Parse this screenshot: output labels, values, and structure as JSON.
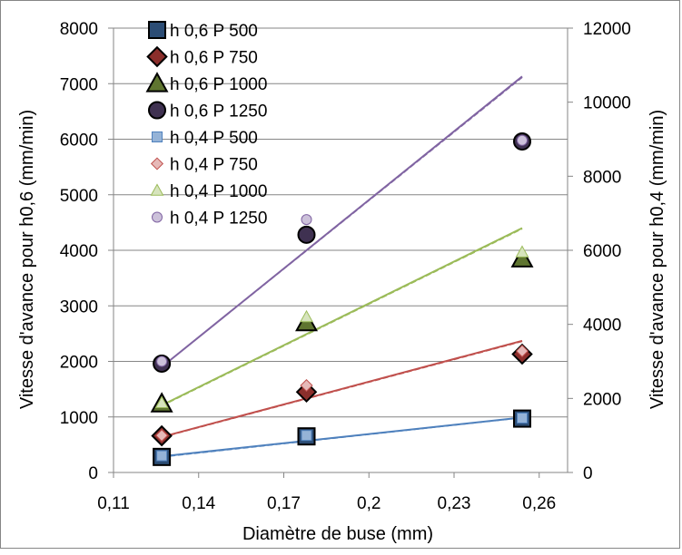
{
  "chart_data": {
    "type": "scatter",
    "title": "",
    "xlabel": "Diamètre de buse (mm)",
    "ylabel": "Vitesse d'avance pour h0,6 (mm/min)",
    "y2label": "Vitesse d'avance pour h0,4  (mm/min)",
    "xlim": [
      0.11,
      0.27
    ],
    "ylim": [
      0,
      8000
    ],
    "y2lim": [
      0,
      12000
    ],
    "x_ticks": [
      "0,11",
      "0,14",
      "0,17",
      "0,2",
      "0,23",
      "0,26"
    ],
    "x_tick_values": [
      0.11,
      0.14,
      0.17,
      0.2,
      0.23,
      0.26
    ],
    "y_ticks": [
      "0",
      "1000",
      "2000",
      "3000",
      "4000",
      "5000",
      "6000",
      "7000",
      "8000"
    ],
    "y_tick_values": [
      0,
      1000,
      2000,
      3000,
      4000,
      5000,
      6000,
      7000,
      8000
    ],
    "y2_ticks": [
      "0",
      "2000",
      "4000",
      "6000",
      "8000",
      "10000",
      "12000"
    ],
    "y2_tick_values": [
      0,
      2000,
      4000,
      6000,
      8000,
      10000,
      12000
    ],
    "grid": "horizontal",
    "legend_position": "top-left",
    "series": [
      {
        "name": "h 0,6 P 500",
        "axis": "left",
        "marker": "square",
        "size": "large",
        "fill": "#2c4d75",
        "stroke": "#000000",
        "x": [
          0.127,
          0.178,
          0.254
        ],
        "y": [
          280,
          650,
          970
        ]
      },
      {
        "name": "h 0,6 P 750",
        "axis": "left",
        "marker": "diamond",
        "size": "large",
        "fill": "#8b2e2b",
        "stroke": "#000000",
        "x": [
          0.127,
          0.178,
          0.254
        ],
        "y": [
          660,
          1450,
          2130
        ]
      },
      {
        "name": "h 0,6 P 1000",
        "axis": "left",
        "marker": "triangle",
        "size": "large",
        "fill": "#5f7530",
        "stroke": "#000000",
        "x": [
          0.127,
          0.178,
          0.254
        ],
        "y": [
          1240,
          2700,
          3850
        ]
      },
      {
        "name": "h 0,6 P 1250",
        "axis": "left",
        "marker": "circle",
        "size": "large",
        "fill": "#3f3151",
        "stroke": "#000000",
        "x": [
          0.127,
          0.178,
          0.254
        ],
        "y": [
          1960,
          4280,
          5960
        ]
      },
      {
        "name": "h 0,4 P 500",
        "axis": "right",
        "marker": "square",
        "size": "small",
        "fill": "#95b3d7",
        "stroke": "#4f81bd",
        "x": [
          0.127,
          0.178,
          0.254
        ],
        "y": [
          450,
          1000,
          1470
        ]
      },
      {
        "name": "h 0,4 P 750",
        "axis": "right",
        "marker": "diamond",
        "size": "small",
        "fill": "#e6b9b8",
        "stroke": "#c0504d",
        "x": [
          0.127,
          0.178,
          0.254
        ],
        "y": [
          1000,
          2350,
          3280
        ]
      },
      {
        "name": "h 0,4 P 1000",
        "axis": "right",
        "marker": "triangle",
        "size": "small",
        "fill": "#d7e4bd",
        "stroke": "#9bbb59",
        "x": [
          0.127,
          0.178,
          0.254
        ],
        "y": [
          1880,
          4200,
          5950
        ]
      },
      {
        "name": "h 0,4 P 1250",
        "axis": "right",
        "marker": "circle",
        "size": "small",
        "fill": "#ccc1da",
        "stroke": "#8064a2",
        "x": [
          0.127,
          0.178,
          0.254
        ],
        "y": [
          3000,
          6830,
          8970
        ]
      }
    ],
    "trendlines": [
      {
        "series": "h 0,6 P 500",
        "axis": "left",
        "color": "#4f81bd",
        "x": [
          0.127,
          0.254
        ],
        "y": [
          290,
          990
        ]
      },
      {
        "series": "h 0,6 P 750",
        "axis": "left",
        "color": "#c0504d",
        "x": [
          0.127,
          0.254
        ],
        "y": [
          640,
          2370
        ]
      },
      {
        "series": "h 0,6 P 1000",
        "axis": "left",
        "color": "#9bbb59",
        "x": [
          0.127,
          0.254
        ],
        "y": [
          1210,
          4400
        ]
      },
      {
        "series": "h 0,6 P 1250",
        "axis": "left",
        "color": "#8064a2",
        "x": [
          0.127,
          0.254
        ],
        "y": [
          1900,
          7130
        ]
      },
      {
        "series": "h 0,4 P 500",
        "axis": "right",
        "color": "#4f81bd",
        "x": [
          0.127,
          0.254
        ],
        "y": [
          420,
          1480
        ]
      },
      {
        "series": "h 0,4 P 750",
        "axis": "right",
        "color": "#c0504d",
        "x": [
          0.127,
          0.254
        ],
        "y": [
          950,
          3540
        ]
      },
      {
        "series": "h 0,4 P 1000",
        "axis": "right",
        "color": "#9bbb59",
        "x": [
          0.127,
          0.254
        ],
        "y": [
          1800,
          6580
        ]
      },
      {
        "series": "h 0,4 P 1250",
        "axis": "right",
        "color": "#8064a2",
        "x": [
          0.127,
          0.254
        ],
        "y": [
          2850,
          10670
        ]
      }
    ]
  }
}
